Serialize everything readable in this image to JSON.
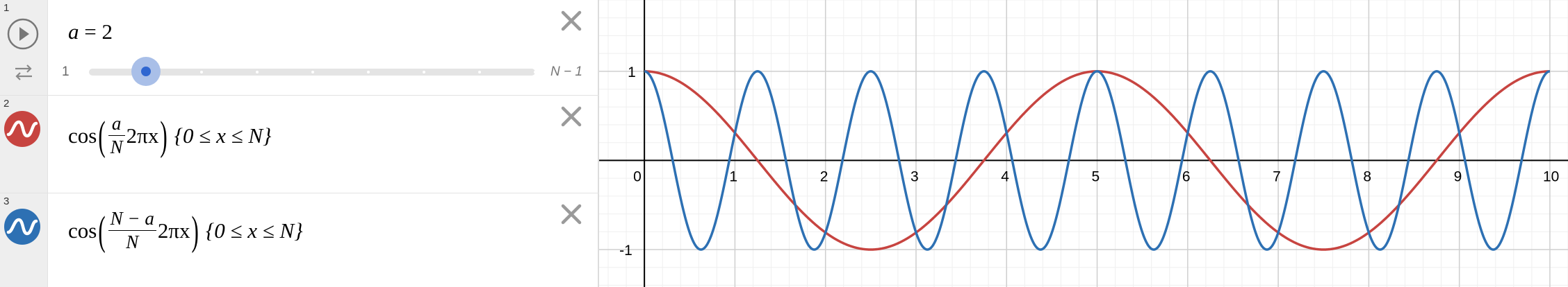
{
  "expressions": [
    {
      "number": "1",
      "lhs": "a",
      "rhs": "2",
      "slider": {
        "min_label": "1",
        "max_label": "N − 1",
        "value": 2,
        "min": 1,
        "max": 9,
        "step": 1
      },
      "icons": [
        "play-icon",
        "loop-icon"
      ]
    },
    {
      "number": "2",
      "func": "cos",
      "frac_num": "a",
      "frac_den": "N",
      "factor": "2πx",
      "domain": "{0 ≤ x ≤ N}",
      "color": "#c74440",
      "icon": "wave-icon"
    },
    {
      "number": "3",
      "func": "cos",
      "frac_num": "N − a",
      "frac_den": "N",
      "factor": "2πx",
      "domain": "{0 ≤ x ≤ N}",
      "color": "#2d70b3",
      "icon": "wave-icon"
    }
  ],
  "close_icon": "close-icon",
  "chart_data": {
    "type": "line",
    "x_ticks": [
      "0",
      "1",
      "2",
      "3",
      "4",
      "5",
      "6",
      "7",
      "8",
      "9",
      "10"
    ],
    "y_ticks": [
      "1",
      "-1"
    ],
    "xlim": [
      -0.5,
      10.2
    ],
    "ylim": [
      -1.42,
      1.8
    ],
    "grid": true,
    "N": 10,
    "a": 2,
    "series": [
      {
        "color": "#c74440",
        "frequency": 0.2,
        "domain": [
          0,
          10
        ]
      },
      {
        "color": "#2d70b3",
        "frequency": 0.8,
        "domain": [
          0,
          10
        ]
      }
    ]
  }
}
